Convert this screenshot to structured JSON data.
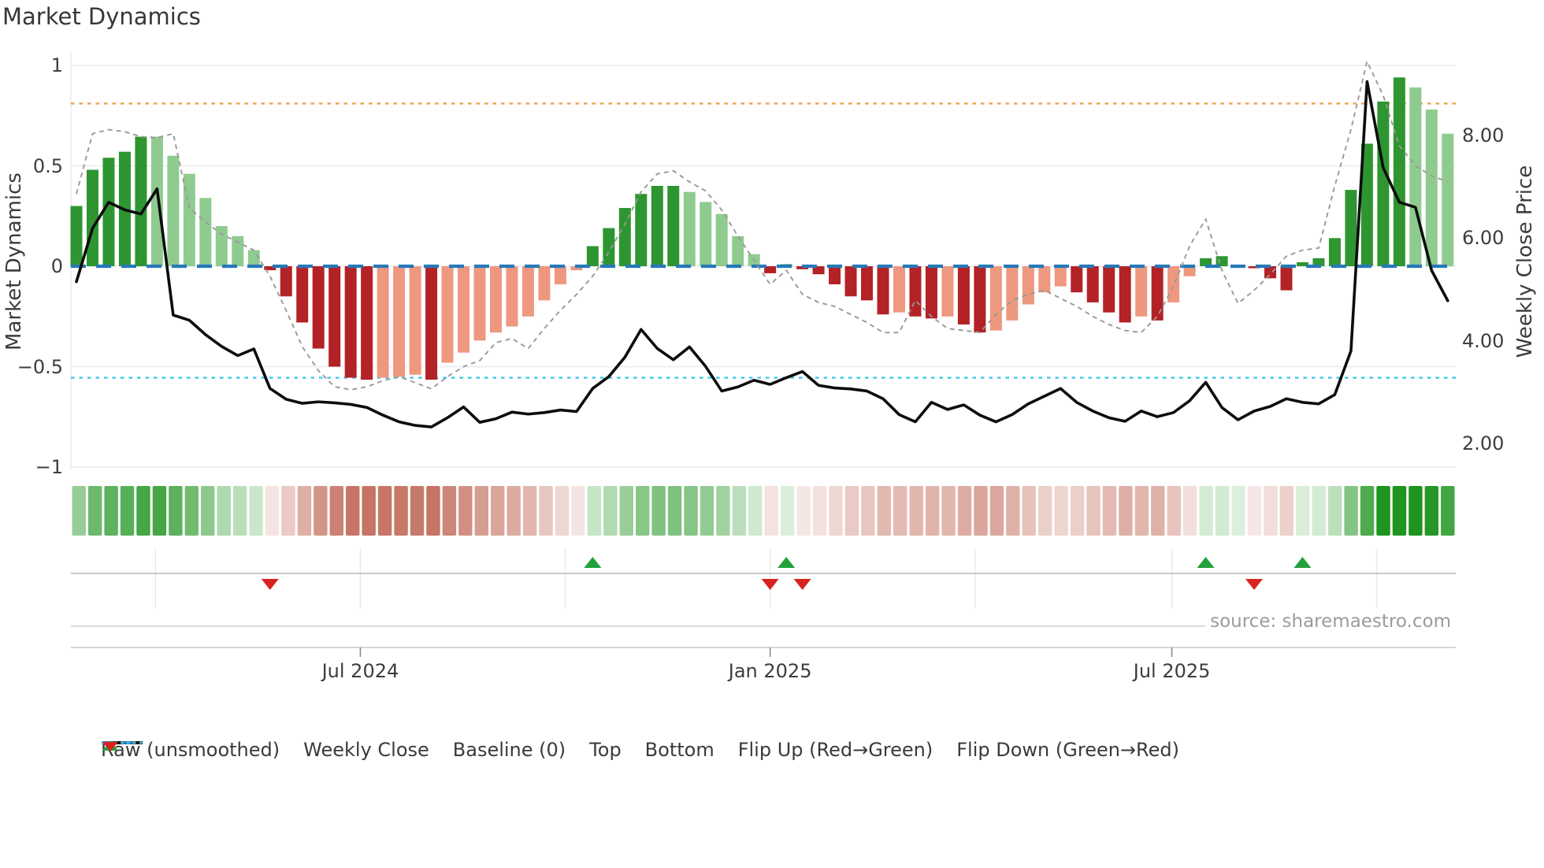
{
  "title": "Market Dynamics",
  "axes": {
    "left_label": "Market Dynamics",
    "right_label": "Weekly Close Price",
    "left_ticks": [
      {
        "value": 1,
        "label": "1"
      },
      {
        "value": 0.5,
        "label": "0.5"
      },
      {
        "value": 0,
        "label": "0"
      },
      {
        "value": -0.5,
        "label": "−0.5"
      },
      {
        "value": -1,
        "label": "−1"
      }
    ],
    "right_ticks": [
      {
        "price": 8,
        "label": "8.00"
      },
      {
        "price": 6,
        "label": "6.00"
      },
      {
        "price": 4,
        "label": "4.00"
      },
      {
        "price": 2,
        "label": "2.00"
      }
    ],
    "x_ticks": [
      {
        "bar_index": 17.6,
        "label": "Jul 2024"
      },
      {
        "bar_index": 43.0,
        "label": "Jan 2025"
      },
      {
        "bar_index": 67.9,
        "label": "Jul 2025"
      }
    ]
  },
  "footer": {
    "source": "source: sharemaestro.com"
  },
  "legend": {
    "items": [
      {
        "swatch": "dash-gray",
        "label": "Raw (unsmoothed)"
      },
      {
        "swatch": "solid-black",
        "label": "Weekly Close"
      },
      {
        "swatch": "dash-blue",
        "label": "Baseline (0)"
      },
      {
        "swatch": "dot-orange",
        "label": "Top"
      },
      {
        "swatch": "dot-cyan",
        "label": "Bottom"
      },
      {
        "swatch": "tri-up",
        "label": "Flip Up (Red→Green)"
      },
      {
        "swatch": "tri-down",
        "label": "Flip Down (Green→Red)"
      }
    ]
  },
  "colors": {
    "bar_dark_green": "#2d9630",
    "bar_light_green": "#8fcb8f",
    "bar_dark_red": "#b32226",
    "bar_salmon": "#ee987f",
    "close_line": "#0d0d0d",
    "raw_line": "#999999",
    "baseline": "#2579b8",
    "top_line": "#f0a050",
    "bottom_line": "#3ec6ec",
    "grid": "#ebebf2",
    "marker_grid": "#e9e9e9",
    "axis_line": "#c9c9c9",
    "tick_mark": "#8a8a8a",
    "flip_up": "#23a13b",
    "flip_down": "#d8231f",
    "heat_pos_target": "#1f941f",
    "heat_neg_target": "#c4705f"
  },
  "chart_data": {
    "type": "combo",
    "title": "Market Dynamics",
    "frequency": "weekly",
    "x_tick_labels": [
      "Jul 2024",
      "Jan 2025",
      "Jul 2025"
    ],
    "left_axis_label": "Market Dynamics",
    "right_axis_label": "Weekly Close Price",
    "left_ylim": [
      -1,
      1
    ],
    "right_ylim": [
      1.5,
      9.6
    ],
    "grid": "horizontal-light",
    "legend_position": "bottom",
    "reference_lines": {
      "baseline": 0,
      "top": 0.81,
      "bottom": -0.555
    },
    "quarter_grid_bar_index": [
      4.9,
      17.6,
      30.3,
      43.0,
      55.7,
      67.9,
      80.6
    ],
    "flip_up_indices": [
      32,
      44,
      70,
      76
    ],
    "flip_down_indices": [
      12,
      43,
      45,
      73
    ],
    "heatmap": "mirrors oscillator bar values (green positive, red negative, intensity by magnitude)",
    "series": [
      {
        "name": "Market Dynamics oscillator",
        "kind": "bar",
        "axis": "left",
        "values": [
          0.3,
          0.48,
          0.54,
          0.57,
          0.645,
          0.645,
          0.55,
          0.46,
          0.34,
          0.2,
          0.15,
          0.08,
          -0.02,
          -0.15,
          -0.28,
          -0.41,
          -0.5,
          -0.555,
          -0.565,
          -0.555,
          -0.55,
          -0.54,
          -0.565,
          -0.48,
          -0.43,
          -0.37,
          -0.33,
          -0.3,
          -0.25,
          -0.17,
          -0.09,
          -0.02,
          0.1,
          0.19,
          0.29,
          0.36,
          0.4,
          0.4,
          0.37,
          0.32,
          0.26,
          0.15,
          0.06,
          -0.035,
          0.01,
          -0.015,
          -0.04,
          -0.09,
          -0.15,
          -0.17,
          -0.24,
          -0.23,
          -0.25,
          -0.26,
          -0.25,
          -0.29,
          -0.33,
          -0.32,
          -0.27,
          -0.19,
          -0.13,
          -0.1,
          -0.13,
          -0.18,
          -0.23,
          -0.28,
          -0.25,
          -0.27,
          -0.18,
          -0.05,
          0.04,
          0.05,
          0.005,
          -0.01,
          -0.06,
          -0.12,
          0.02,
          0.04,
          0.14,
          0.38,
          0.61,
          0.82,
          0.94,
          0.89,
          0.78,
          0.66
        ],
        "palette": [
          "dg",
          "dg",
          "dg",
          "dg",
          "dg",
          "lg",
          "lg",
          "lg",
          "lg",
          "lg",
          "lg",
          "lg",
          "dr",
          "dr",
          "dr",
          "dr",
          "dr",
          "dr",
          "dr",
          "lr",
          "lr",
          "lr",
          "dr",
          "lr",
          "lr",
          "lr",
          "lr",
          "lr",
          "lr",
          "lr",
          "lr",
          "lr",
          "dg",
          "dg",
          "dg",
          "dg",
          "dg",
          "dg",
          "lg",
          "lg",
          "lg",
          "lg",
          "lg",
          "dr",
          "dg",
          "dr",
          "dr",
          "dr",
          "dr",
          "dr",
          "dr",
          "lr",
          "dr",
          "dr",
          "lr",
          "dr",
          "dr",
          "lr",
          "lr",
          "lr",
          "lr",
          "lr",
          "dr",
          "dr",
          "dr",
          "dr",
          "lr",
          "dr",
          "lr",
          "lr",
          "dg",
          "dg",
          "dg",
          "dr",
          "dr",
          "dr",
          "dg",
          "dg",
          "dg",
          "dg",
          "dg",
          "dg",
          "dg",
          "lg",
          "lg",
          "lg"
        ]
      },
      {
        "name": "Raw (unsmoothed)",
        "kind": "line",
        "style": "dashed",
        "axis": "left",
        "values": [
          0.36,
          0.66,
          0.68,
          0.67,
          0.645,
          0.64,
          0.66,
          0.29,
          0.22,
          0.16,
          0.12,
          0.08,
          -0.05,
          -0.22,
          -0.4,
          -0.52,
          -0.6,
          -0.615,
          -0.6,
          -0.57,
          -0.55,
          -0.58,
          -0.61,
          -0.55,
          -0.5,
          -0.47,
          -0.38,
          -0.36,
          -0.41,
          -0.31,
          -0.22,
          -0.14,
          -0.05,
          0.07,
          0.21,
          0.37,
          0.46,
          0.475,
          0.42,
          0.375,
          0.28,
          0.15,
          0.03,
          -0.09,
          -0.02,
          -0.14,
          -0.18,
          -0.2,
          -0.24,
          -0.28,
          -0.33,
          -0.33,
          -0.17,
          -0.25,
          -0.31,
          -0.32,
          -0.33,
          -0.24,
          -0.17,
          -0.14,
          -0.12,
          -0.16,
          -0.2,
          -0.25,
          -0.29,
          -0.32,
          -0.33,
          -0.25,
          -0.1,
          0.1,
          0.235,
          -0.02,
          -0.185,
          -0.12,
          -0.04,
          0.05,
          0.08,
          0.09,
          0.4,
          0.68,
          1.02,
          0.85,
          0.6,
          0.5,
          0.45,
          0.42
        ]
      },
      {
        "name": "Weekly Close",
        "kind": "line",
        "style": "solid",
        "axis": "right",
        "values": [
          5.15,
          6.19,
          6.7,
          6.55,
          6.47,
          6.96,
          4.5,
          4.4,
          4.12,
          3.89,
          3.71,
          3.84,
          3.07,
          2.86,
          2.78,
          2.81,
          2.79,
          2.76,
          2.7,
          2.55,
          2.42,
          2.35,
          2.32,
          2.5,
          2.71,
          2.41,
          2.48,
          2.61,
          2.57,
          2.6,
          2.65,
          2.62,
          3.07,
          3.3,
          3.68,
          4.22,
          3.85,
          3.63,
          3.88,
          3.5,
          3.02,
          3.1,
          3.23,
          3.15,
          3.28,
          3.4,
          3.13,
          3.08,
          3.06,
          3.02,
          2.87,
          2.56,
          2.42,
          2.8,
          2.66,
          2.75,
          2.55,
          2.42,
          2.56,
          2.77,
          2.92,
          3.07,
          2.8,
          2.63,
          2.5,
          2.43,
          2.63,
          2.52,
          2.6,
          2.83,
          3.19,
          2.7,
          2.46,
          2.63,
          2.72,
          2.87,
          2.8,
          2.77,
          2.95,
          3.8,
          9.05,
          7.37,
          6.7,
          6.6,
          5.37,
          4.78
        ]
      }
    ]
  }
}
